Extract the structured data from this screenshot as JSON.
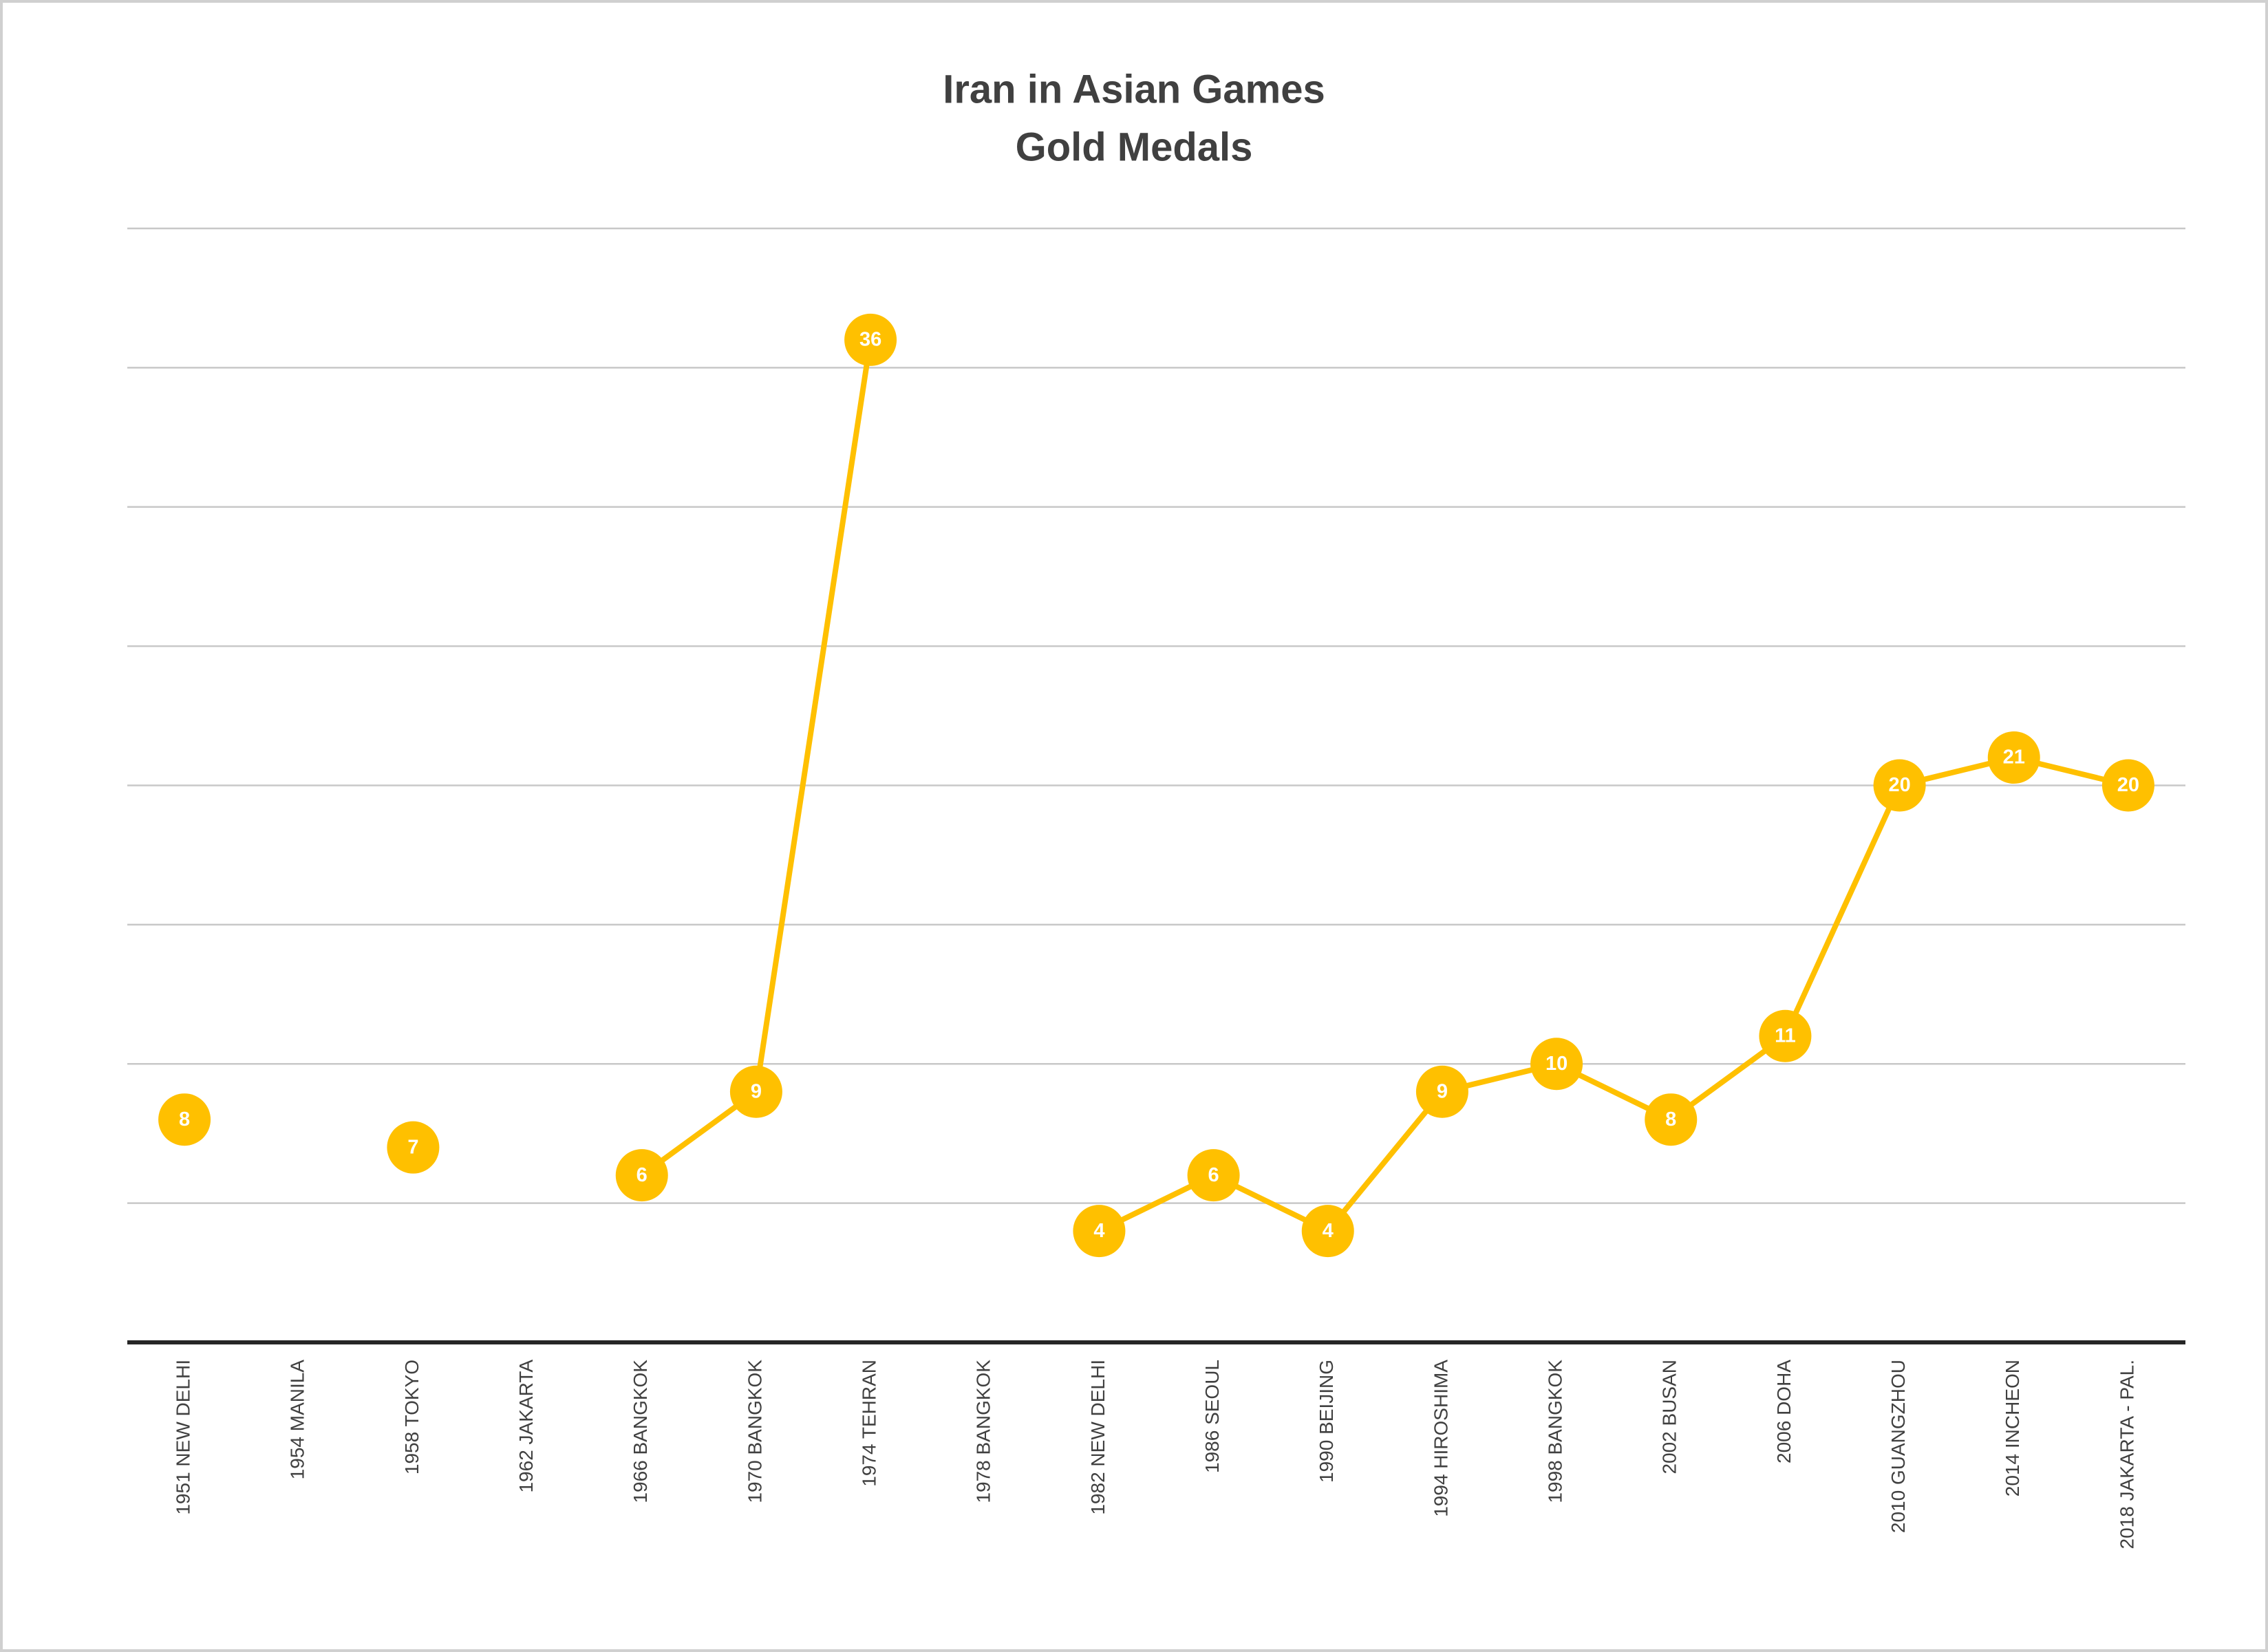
{
  "chart_data": {
    "type": "line",
    "title": [
      "Iran in Asian Games",
      "Gold Medals"
    ],
    "categories": [
      "1951 NEW DELHI",
      "1954 MANILA",
      "1958 TOKYO",
      "1962 JAKARTA",
      "1966 BANGKOK",
      "1970 BANGKOK",
      "1974 TEHRAN",
      "1978 BANGKOK",
      "1982 NEW DELHI",
      "1986 SEOUL",
      "1990 BEIJING",
      "1994 HIROSHIMA",
      "1998 BANGKOK",
      "2002 BUSAN",
      "2006 DOHA",
      "2010 GUANGZHOU",
      "2014 INCHEON",
      "2018 JAKARTA - PAL."
    ],
    "values": [
      8,
      null,
      7,
      null,
      6,
      9,
      36,
      null,
      4,
      6,
      4,
      9,
      10,
      8,
      11,
      20,
      21,
      20
    ],
    "color": "#FFC000",
    "ylim": [
      0,
      40
    ],
    "yticks": [
      0,
      5,
      10,
      15,
      20,
      25,
      30,
      35,
      40
    ],
    "grid": true
  }
}
